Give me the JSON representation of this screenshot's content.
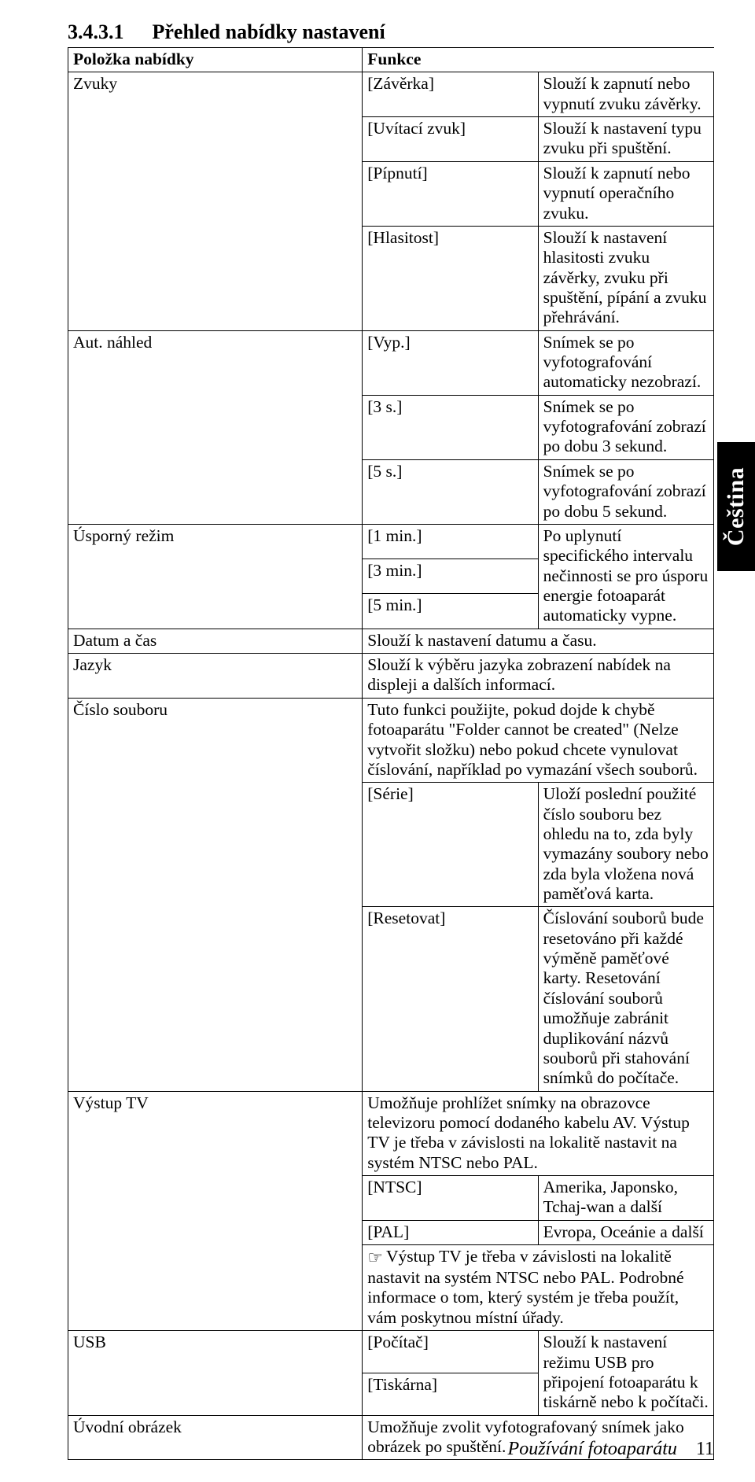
{
  "heading": {
    "number": "3.4.3.1",
    "title": "Přehled nabídky nastavení"
  },
  "header_row": {
    "col1": "Položka nabídky",
    "col2": "Funkce"
  },
  "rows": {
    "zvuky": {
      "label": "Zvuky",
      "r1o": "[Závěrka]",
      "r1d": "Slouží k zapnutí nebo vypnutí zvuku závěrky.",
      "r2o": "[Uvítací zvuk]",
      "r2d": "Slouží k nastavení typu zvuku při spuštění.",
      "r3o": "[Pípnutí]",
      "r3d": "Slouží k zapnutí nebo vypnutí operačního zvuku.",
      "r4o": "[Hlasitost]",
      "r4d": "Slouží k nastavení hlasitosti zvuku závěrky, zvuku při spuštění, pípání a zvuku přehrávání."
    },
    "nahled": {
      "label": "Aut. náhled",
      "r1o": "[Vyp.]",
      "r1d": "Snímek se po vyfotografování automaticky nezobrazí.",
      "r2o": "[3 s.]",
      "r2d": "Snímek se po vyfotografování zobrazí po dobu 3 sekund.",
      "r3o": "[5 s.]",
      "r3d": "Snímek se po vyfotografování zobrazí po dobu 5 sekund."
    },
    "usporny": {
      "label": "Úsporný režim",
      "r1o": "[1 min.]",
      "desc": "Po uplynutí specifického intervalu nečinnosti se pro úsporu energie fotoaparát automaticky vypne.",
      "r2o": "[3 min.]",
      "r3o": "[5 min.]"
    },
    "datum": {
      "label": "Datum a čas",
      "desc": "Slouží k nastavení datumu a času."
    },
    "jazyk": {
      "label": "Jazyk",
      "desc": "Slouží k výběru jazyka zobrazení nabídek na displeji a dalších informací."
    },
    "cislo": {
      "label": "Číslo souboru",
      "intro": "Tuto funkci použijte, pokud dojde k chybě fotoaparátu \"Folder cannot be created\" (Nelze vytvořit složku) nebo pokud chcete vynulovat číslování, například po vymazání všech souborů.",
      "r1o": "[Série]",
      "r1d": "Uloží poslední použité číslo souboru bez ohledu na to, zda byly vymazány soubory nebo zda byla vložena nová paměťová karta.",
      "r2o": "[Resetovat]",
      "r2d": "Číslování souborů bude resetováno při každé výměně paměťové karty. Resetování číslování souborů umožňuje zabránit duplikování názvů souborů při stahování snímků do počítače."
    },
    "vystup": {
      "label": "Výstup TV",
      "intro": "Umožňuje prohlížet snímky na obrazovce televizoru pomocí dodaného kabelu AV. Výstup TV je třeba v závislosti na lokalitě nastavit na systém NTSC nebo PAL.",
      "r1o": "[NTSC]",
      "r1d": "Amerika, Japonsko, Tchaj-wan a další",
      "r2o": "[PAL]",
      "r2d": "Evropa, Oceánie a další",
      "note": "Výstup TV je třeba v závislosti na lokalitě nastavit na systém NTSC nebo PAL.  Podrobné informace o tom, který systém je třeba použít, vám poskytnou místní úřady."
    },
    "usb": {
      "label": "USB",
      "r1o": "[Počítač]",
      "desc": "Slouží k nastavení režimu USB pro připojení fotoaparátu k tiskárně nebo k počítači.",
      "r2o": "[Tiskárna]"
    },
    "uvodni": {
      "label": "Úvodní obrázek",
      "desc": "Umožňuje zvolit vyfotografovaný snímek jako obrázek po spuštění."
    }
  },
  "side_tab": "Čeština",
  "footer": {
    "title": "Používání fotoaparátu",
    "page": "11"
  }
}
